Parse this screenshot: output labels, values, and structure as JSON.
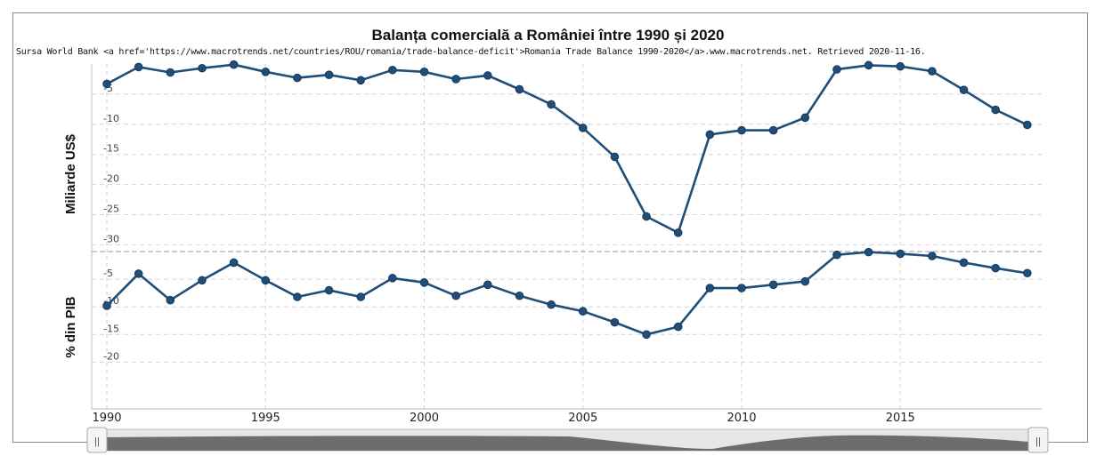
{
  "chart_data": [
    {
      "type": "line",
      "title": "Balanța comercială a României între 1990 și 2020",
      "subtitle": "Sursa World Bank <a href='https://www.macrotrends.net/countries/ROU/romania/trade-balance-deficit'>Romania Trade Balance 1990-2020</a>.www.macrotrends.net. Retrieved 2020-11-16.",
      "ylabel": "Miliarde US$",
      "ylim": [
        -30,
        0
      ],
      "yticks": [
        "-5",
        "-10",
        "-15",
        "-20",
        "-25",
        "-30"
      ],
      "x": [
        1990,
        1991,
        1992,
        1993,
        1994,
        1995,
        1996,
        1997,
        1998,
        1999,
        2000,
        2001,
        2002,
        2003,
        2004,
        2005,
        2006,
        2007,
        2008,
        2009,
        2010,
        2011,
        2012,
        2013,
        2014,
        2015,
        2016,
        2017,
        2018,
        2019
      ],
      "values": [
        -3.3,
        -0.5,
        -1.4,
        -0.7,
        -0.1,
        -1.3,
        -2.3,
        -1.8,
        -2.7,
        -1.0,
        -1.3,
        -2.5,
        -1.9,
        -4.2,
        -6.7,
        -10.6,
        -15.4,
        -25.3,
        -28.0,
        -11.7,
        -11.0,
        -11.0,
        -8.9,
        -0.9,
        -0.2,
        -0.4,
        -1.2,
        -4.3,
        -7.6,
        -10.1
      ],
      "grid": true,
      "color": "#1f4e79"
    },
    {
      "type": "line",
      "ylabel": "% din PIB",
      "ylim": [
        -20,
        0
      ],
      "yticks": [
        "-5",
        "-10",
        "-15",
        "-20"
      ],
      "x": [
        1990,
        1991,
        1992,
        1993,
        1994,
        1995,
        1996,
        1997,
        1998,
        1999,
        2000,
        2001,
        2002,
        2003,
        2004,
        2005,
        2006,
        2007,
        2008,
        2009,
        2010,
        2011,
        2012,
        2013,
        2014,
        2015,
        2016,
        2017,
        2018,
        2019
      ],
      "values": [
        -9.8,
        -4.0,
        -8.8,
        -5.2,
        -2.0,
        -5.2,
        -8.2,
        -7.0,
        -8.2,
        -4.8,
        -5.6,
        -8.0,
        -6.0,
        -8.0,
        -9.6,
        -10.8,
        -12.8,
        -15.0,
        -13.6,
        -6.6,
        -6.6,
        -6.0,
        -5.4,
        -0.6,
        -0.1,
        -0.4,
        -0.8,
        -2.0,
        -3.0,
        -3.9
      ],
      "grid": true,
      "color": "#1f4e79"
    }
  ],
  "x_axis": {
    "ticks": [
      "1990",
      "1995",
      "2000",
      "2005",
      "2010",
      "2015"
    ]
  },
  "navigator": {
    "handle_left": "||",
    "handle_right": "||"
  }
}
